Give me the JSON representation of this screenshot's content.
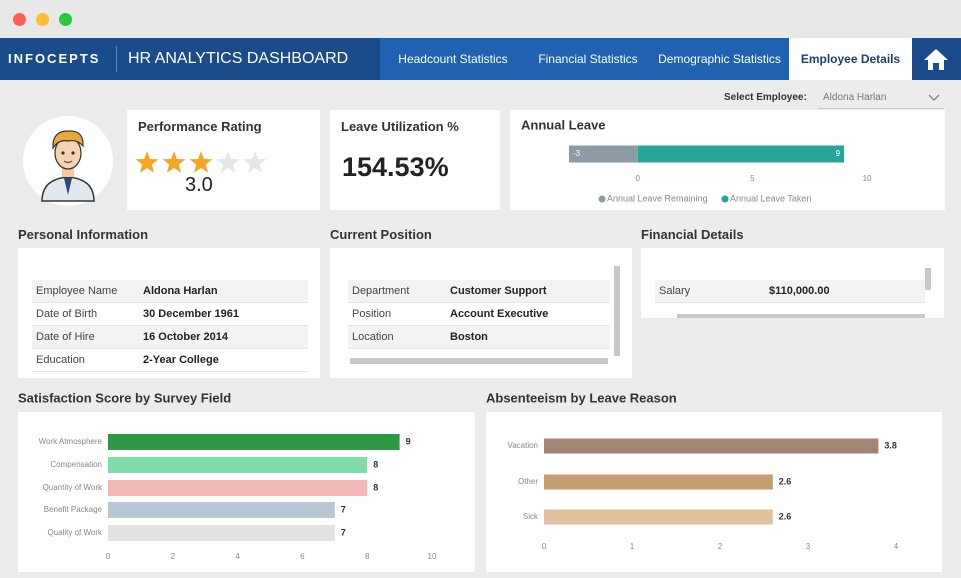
{
  "header": {
    "brand": "INFOCEPTS",
    "title": "HR ANALYTICS DASHBOARD",
    "tabs": [
      "Headcount Statistics",
      "Financial Statistics",
      "Demographic Statistics",
      "Employee Details"
    ],
    "active_tab": 3
  },
  "select": {
    "label": "Select Employee:",
    "value": "Aldona Harlan"
  },
  "performance": {
    "title": "Performance Rating",
    "rating": {
      "value": 3,
      "label": "3.0"
    },
    "max": 5
  },
  "leave_utilization": {
    "title": "Leave Utilization %",
    "value": "154.53%"
  },
  "personal": {
    "title": "Personal Information",
    "rows": [
      [
        "Employee Name",
        "Aldona Harlan"
      ],
      [
        "Date of Birth",
        "30 December 1961"
      ],
      [
        "Date of Hire",
        "16 October 2014"
      ],
      [
        "Education",
        "2-Year College"
      ]
    ]
  },
  "position": {
    "title": "Current Position",
    "rows": [
      [
        "Department",
        "Customer Support"
      ],
      [
        "Position",
        "Account Executive"
      ],
      [
        "Location",
        "Boston"
      ]
    ]
  },
  "financial": {
    "title": "Financial Details",
    "rows": [
      [
        "Salary",
        "$110,000.00"
      ]
    ]
  },
  "chart_data": [
    {
      "type": "bar",
      "title": "Annual Leave",
      "series": [
        {
          "name": "Annual Leave Remaining",
          "color": "#8d9ba5",
          "values": [
            -3
          ]
        },
        {
          "name": "Annual Leave Taken",
          "color": "#26a69a",
          "values": [
            9
          ]
        }
      ],
      "xlim": [
        -3.2,
        10.5
      ],
      "xticks": [
        0,
        5,
        10
      ],
      "legend": "bottom"
    },
    {
      "type": "bar",
      "title": "Satisfaction Score by Survey Field",
      "categories": [
        "Work Atmosphere",
        "Compensation",
        "Quantity of Work",
        "Benefit Package",
        "Quality of Work"
      ],
      "values": [
        9,
        8,
        8,
        7,
        7
      ],
      "colors": [
        "#2c9a44",
        "#7ddca7",
        "#f6b7b7",
        "#b7c7d4",
        "#e2e2e2"
      ],
      "xlim": [
        0,
        10
      ],
      "xticks": [
        0,
        2,
        4,
        6,
        8,
        10
      ]
    },
    {
      "type": "bar",
      "title": "Absenteeism by Leave Reason",
      "categories": [
        "Vacation",
        "Other",
        "Sick"
      ],
      "values": [
        3.8,
        2.6,
        2.6
      ],
      "colors": [
        "#a48573",
        "#c69d72",
        "#e2bf9f"
      ],
      "xlim": [
        0,
        4
      ],
      "xticks": [
        0,
        1,
        2,
        3,
        4
      ]
    }
  ]
}
